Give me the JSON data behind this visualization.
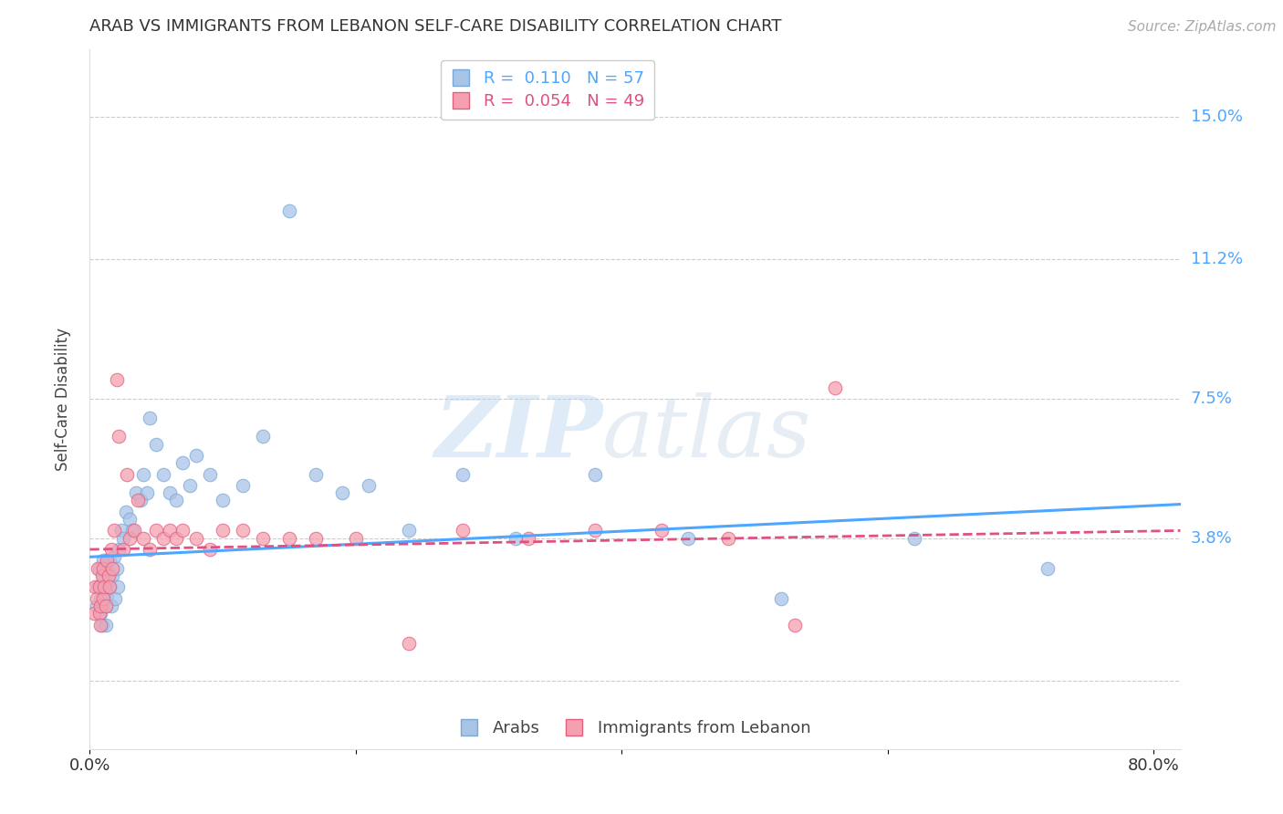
{
  "title": "ARAB VS IMMIGRANTS FROM LEBANON SELF-CARE DISABILITY CORRELATION CHART",
  "source": "Source: ZipAtlas.com",
  "ylabel": "Self-Care Disability",
  "xlabel": "",
  "xlim": [
    0.0,
    0.82
  ],
  "ylim": [
    -0.018,
    0.168
  ],
  "yticks": [
    0.0,
    0.038,
    0.075,
    0.112,
    0.15
  ],
  "ytick_labels": [
    "",
    "3.8%",
    "7.5%",
    "11.2%",
    "15.0%"
  ],
  "xticks": [
    0.0,
    0.2,
    0.4,
    0.6,
    0.8
  ],
  "xtick_labels": [
    "0.0%",
    "",
    "",
    "",
    "80.0%"
  ],
  "background_color": "#ffffff",
  "grid_color": "#cccccc",
  "arab_color": "#aac4e8",
  "arab_edge_color": "#7aaad4",
  "immigrant_color": "#f5a0b0",
  "immigrant_edge_color": "#e06080",
  "arab_R": 0.11,
  "arab_N": 57,
  "immigrant_R": 0.054,
  "immigrant_N": 49,
  "legend_label_arab": "Arabs",
  "legend_label_immigrant": "Immigrants from Lebanon",
  "watermark_zip": "ZIP",
  "watermark_atlas": "atlas",
  "title_color": "#333333",
  "axis_label_color": "#444444",
  "tick_label_color_right": "#4da6ff",
  "arab_line_color": "#4da6ff",
  "immigrant_line_color": "#e05080",
  "marker_size": 110,
  "arab_scatter_x": [
    0.005,
    0.006,
    0.007,
    0.007,
    0.008,
    0.008,
    0.009,
    0.01,
    0.01,
    0.011,
    0.012,
    0.012,
    0.013,
    0.013,
    0.014,
    0.015,
    0.015,
    0.016,
    0.017,
    0.018,
    0.019,
    0.02,
    0.021,
    0.022,
    0.024,
    0.025,
    0.027,
    0.03,
    0.032,
    0.035,
    0.038,
    0.04,
    0.043,
    0.045,
    0.05,
    0.055,
    0.06,
    0.065,
    0.07,
    0.075,
    0.08,
    0.09,
    0.1,
    0.115,
    0.13,
    0.15,
    0.17,
    0.19,
    0.21,
    0.24,
    0.28,
    0.32,
    0.38,
    0.45,
    0.52,
    0.62,
    0.72
  ],
  "arab_scatter_y": [
    0.02,
    0.025,
    0.03,
    0.025,
    0.022,
    0.018,
    0.015,
    0.028,
    0.032,
    0.025,
    0.02,
    0.015,
    0.03,
    0.023,
    0.028,
    0.032,
    0.025,
    0.02,
    0.028,
    0.033,
    0.022,
    0.03,
    0.025,
    0.035,
    0.04,
    0.038,
    0.045,
    0.043,
    0.04,
    0.05,
    0.048,
    0.055,
    0.05,
    0.07,
    0.063,
    0.055,
    0.05,
    0.048,
    0.058,
    0.052,
    0.06,
    0.055,
    0.048,
    0.052,
    0.065,
    0.125,
    0.055,
    0.05,
    0.052,
    0.04,
    0.055,
    0.038,
    0.055,
    0.038,
    0.022,
    0.038,
    0.03
  ],
  "immigrant_scatter_x": [
    0.003,
    0.004,
    0.005,
    0.006,
    0.007,
    0.007,
    0.008,
    0.008,
    0.009,
    0.01,
    0.01,
    0.011,
    0.012,
    0.013,
    0.014,
    0.015,
    0.016,
    0.017,
    0.018,
    0.02,
    0.022,
    0.025,
    0.028,
    0.03,
    0.033,
    0.036,
    0.04,
    0.045,
    0.05,
    0.055,
    0.06,
    0.065,
    0.07,
    0.08,
    0.09,
    0.1,
    0.115,
    0.13,
    0.15,
    0.17,
    0.2,
    0.24,
    0.28,
    0.33,
    0.38,
    0.43,
    0.48,
    0.53,
    0.56
  ],
  "immigrant_scatter_y": [
    0.018,
    0.025,
    0.022,
    0.03,
    0.025,
    0.018,
    0.02,
    0.015,
    0.028,
    0.03,
    0.022,
    0.025,
    0.02,
    0.032,
    0.028,
    0.025,
    0.035,
    0.03,
    0.04,
    0.08,
    0.065,
    0.035,
    0.055,
    0.038,
    0.04,
    0.048,
    0.038,
    0.035,
    0.04,
    0.038,
    0.04,
    0.038,
    0.04,
    0.038,
    0.035,
    0.04,
    0.04,
    0.038,
    0.038,
    0.038,
    0.038,
    0.01,
    0.04,
    0.038,
    0.04,
    0.04,
    0.038,
    0.015,
    0.078
  ]
}
